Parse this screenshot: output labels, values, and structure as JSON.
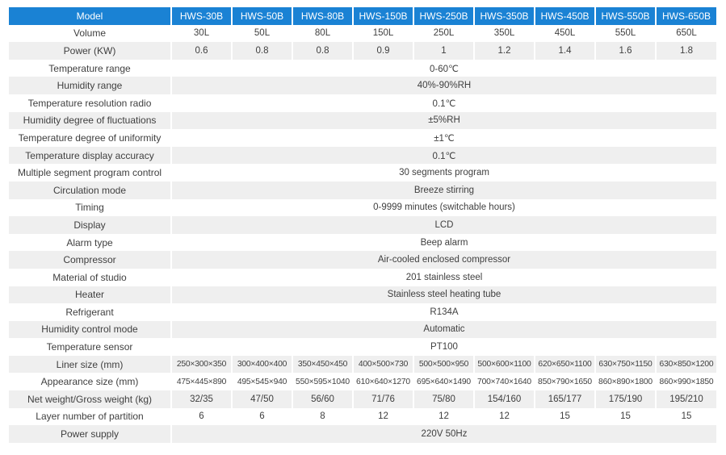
{
  "colors": {
    "header_bg": "#1a82d4",
    "header_text": "#ffffff",
    "stripe_bg": "#efefef",
    "body_text": "#3f3f3f",
    "separator": "#ffffff"
  },
  "table": {
    "header_label": "Model",
    "models": [
      "HWS-30B",
      "HWS-50B",
      "HWS-80B",
      "HWS-150B",
      "HWS-250B",
      "HWS-350B",
      "HWS-450B",
      "HWS-550B",
      "HWS-650B"
    ],
    "rows": [
      {
        "label": "Volume",
        "values": [
          "30L",
          "50L",
          "80L",
          "150L",
          "250L",
          "350L",
          "450L",
          "550L",
          "650L"
        ]
      },
      {
        "label": "Power (KW)",
        "values": [
          "0.6",
          "0.8",
          "0.8",
          "0.9",
          "1",
          "1.2",
          "1.4",
          "1.6",
          "1.8"
        ]
      },
      {
        "label": "Temperature range",
        "values": [
          "0-60℃"
        ]
      },
      {
        "label": "Humidity range",
        "values": [
          "40%-90%RH"
        ]
      },
      {
        "label": "Temperature resolution radio",
        "values": [
          "0.1℃"
        ]
      },
      {
        "label": "Humidity degree of  fluctuations",
        "values": [
          "±5%RH"
        ]
      },
      {
        "label": "Temperature degree of uniformity",
        "values": [
          "±1℃"
        ]
      },
      {
        "label": "Temperature display accuracy",
        "values": [
          "0.1℃"
        ]
      },
      {
        "label": "Multiple segment program control",
        "values": [
          "30 segments program"
        ]
      },
      {
        "label": "Circulation mode",
        "values": [
          "Breeze stirring"
        ]
      },
      {
        "label": "Timing",
        "values": [
          "0-9999 minutes (switchable hours)"
        ]
      },
      {
        "label": "Display",
        "values": [
          "LCD"
        ]
      },
      {
        "label": "Alarm type",
        "values": [
          "Beep alarm"
        ]
      },
      {
        "label": "Compressor",
        "values": [
          "Air-cooled enclosed compressor"
        ]
      },
      {
        "label": "Material of studio",
        "values": [
          "201 stainless steel"
        ]
      },
      {
        "label": "Heater",
        "values": [
          "Stainless steel heating tube"
        ]
      },
      {
        "label": "Refrigerant",
        "values": [
          "R134A"
        ]
      },
      {
        "label": "Humidity control mode",
        "values": [
          "Automatic"
        ]
      },
      {
        "label": "Temperature sensor",
        "values": [
          "PT100"
        ]
      },
      {
        "label": "Liner size (mm)",
        "values": [
          "250×300×350",
          "300×400×400",
          "350×450×450",
          "400×500×730",
          "500×500×950",
          "500×600×1100",
          "620×650×1100",
          "630×750×1150",
          "630×850×1200"
        ]
      },
      {
        "label": "Appearance size (mm)",
        "values": [
          "475×445×890",
          "495×545×940",
          "550×595×1040",
          "610×640×1270",
          "695×640×1490",
          "700×740×1640",
          "850×790×1650",
          "860×890×1800",
          "860×990×1850"
        ]
      },
      {
        "label": "Net weight/Gross weight (kg)",
        "values": [
          "32/35",
          "47/50",
          "56/60",
          "71/76",
          "75/80",
          "154/160",
          "165/177",
          "175/190",
          "195/210"
        ]
      },
      {
        "label": "Layer number of partition",
        "values": [
          "6",
          "6",
          "8",
          "12",
          "12",
          "12",
          "15",
          "15",
          "15"
        ]
      },
      {
        "label": "Power supply",
        "values": [
          "220V 50Hz"
        ]
      }
    ]
  }
}
